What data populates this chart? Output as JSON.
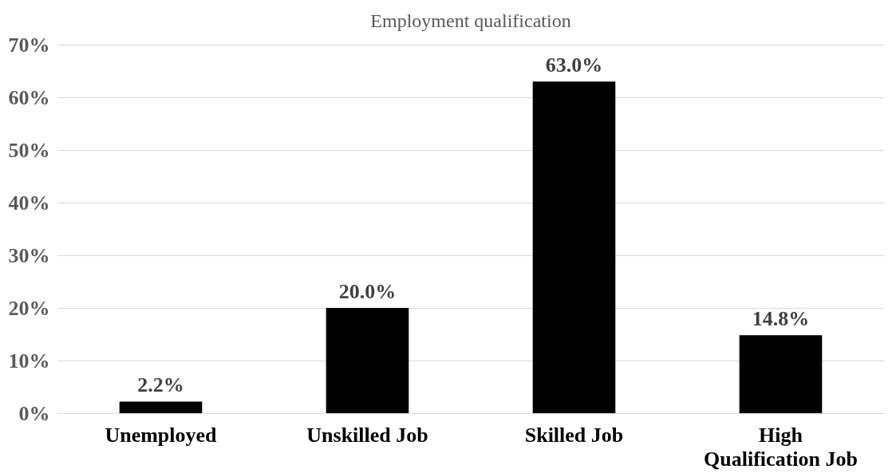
{
  "chart_data": {
    "type": "bar",
    "title": "Employment qualification",
    "categories": [
      "Unemployed",
      "Unskilled Job",
      "Skilled Job",
      "High Qualification Job"
    ],
    "values": [
      2.2,
      20.0,
      63.0,
      14.8
    ],
    "value_labels": [
      "2.2%",
      "20.0%",
      "63.0%",
      "14.8%"
    ],
    "color": "#000000",
    "ylim": [
      0,
      70
    ],
    "yticks": [
      {
        "value": 0,
        "label": "0%"
      },
      {
        "value": 10,
        "label": "10%"
      },
      {
        "value": 20,
        "label": "20%"
      },
      {
        "value": 30,
        "label": "30%"
      },
      {
        "value": 40,
        "label": "40%"
      },
      {
        "value": 50,
        "label": "50%"
      },
      {
        "value": 60,
        "label": "60%"
      },
      {
        "value": 70,
        "label": "70%"
      }
    ],
    "grid": "y"
  }
}
